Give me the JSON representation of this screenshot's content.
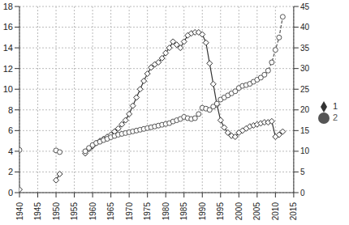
{
  "chart_data": {
    "type": "line",
    "x": [
      1940,
      1941,
      1950,
      1951,
      1957,
      1958,
      1959,
      1960,
      1961,
      1962,
      1963,
      1964,
      1965,
      1966,
      1967,
      1968,
      1969,
      1970,
      1971,
      1972,
      1973,
      1974,
      1975,
      1976,
      1977,
      1978,
      1979,
      1980,
      1981,
      1982,
      1983,
      1984,
      1985,
      1986,
      1987,
      1988,
      1989,
      1990,
      1991,
      1992,
      1993,
      1994,
      1995,
      1996,
      1997,
      1998,
      1999,
      2000,
      2001,
      2002,
      2003,
      2004,
      2005,
      2006,
      2007,
      2008,
      2009,
      2010,
      2011,
      2012
    ],
    "series": [
      {
        "name": "1",
        "color": "#333333",
        "marker": "diamond",
        "line_style": "solid",
        "values": [
          0.3,
          null,
          1.2,
          1.8,
          null,
          3.8,
          4.2,
          4.5,
          4.8,
          5.0,
          5.2,
          5.4,
          5.6,
          5.9,
          6.2,
          6.6,
          7.0,
          7.6,
          8.4,
          9.2,
          10.0,
          10.8,
          11.5,
          12.1,
          12.4,
          12.6,
          13.0,
          13.5,
          14.0,
          14.6,
          14.3,
          14.0,
          14.6,
          15.2,
          15.4,
          15.5,
          15.5,
          15.3,
          14.5,
          12.5,
          10.5,
          8.5,
          7.0,
          6.3,
          5.8,
          5.5,
          5.4,
          5.8,
          6.0,
          6.2,
          6.4,
          6.5,
          6.6,
          6.7,
          6.8,
          6.8,
          6.9,
          5.4,
          5.6,
          5.9
        ]
      },
      {
        "name": "2",
        "color": "#555555",
        "marker": "circle",
        "line_style": "dashed",
        "axis": "y2",
        "values": [
          10.3,
          null,
          10.2,
          9.8,
          null,
          10.0,
          10.8,
          11.5,
          12.0,
          12.3,
          12.7,
          13.0,
          13.4,
          13.7,
          14.0,
          14.2,
          14.4,
          14.6,
          14.8,
          15.0,
          15.2,
          15.4,
          15.6,
          15.8,
          16.0,
          16.2,
          16.4,
          16.6,
          16.8,
          17.2,
          17.5,
          17.8,
          18.3,
          18.0,
          17.8,
          18.0,
          19.0,
          20.5,
          20.3,
          20.0,
          20.8,
          21.5,
          22.5,
          23.0,
          23.5,
          24.0,
          24.5,
          25.3,
          25.8,
          26.0,
          26.3,
          26.8,
          27.3,
          27.8,
          28.5,
          29.5,
          31.5,
          34.5,
          37.5,
          42.5
        ]
      }
    ],
    "xlim": [
      1940,
      2015
    ],
    "xticks": [
      1940,
      1945,
      1950,
      1955,
      1960,
      1965,
      1970,
      1975,
      1980,
      1985,
      1990,
      1995,
      2000,
      2005,
      2010,
      2015
    ],
    "ylim": [
      0,
      18
    ],
    "yticks": [
      0,
      2,
      4,
      6,
      8,
      10,
      12,
      14,
      16,
      18
    ],
    "y2lim": [
      0,
      45
    ],
    "y2ticks": [
      0,
      5,
      10,
      15,
      20,
      25,
      30,
      35,
      40,
      45
    ],
    "grid": true,
    "legend": "right"
  }
}
